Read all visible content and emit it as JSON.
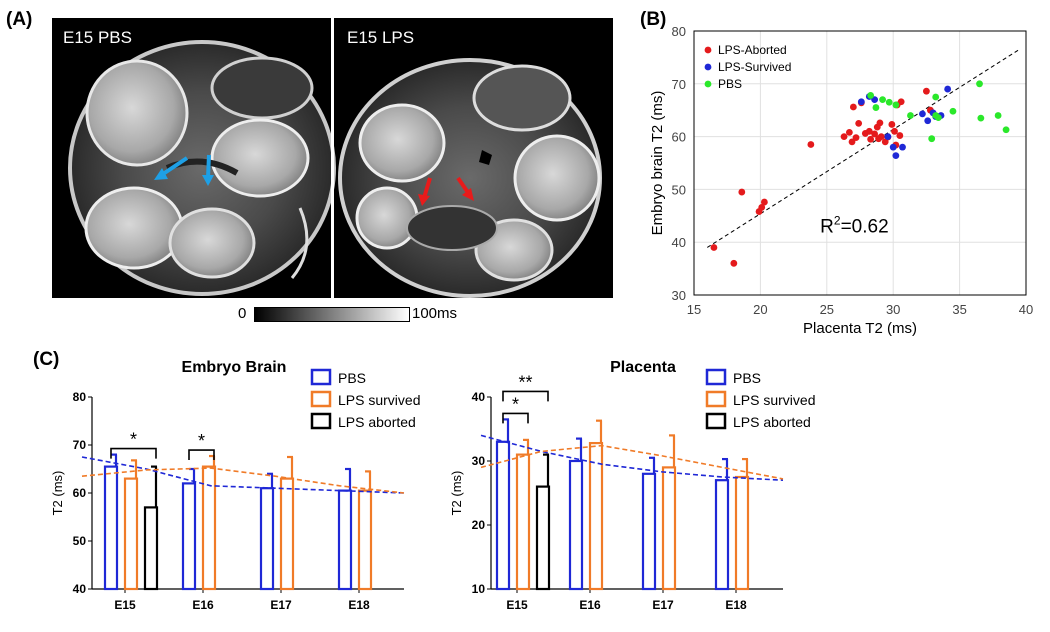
{
  "panels": {
    "a": "(A)",
    "b": "(B)",
    "c": "(C)"
  },
  "mri": {
    "left_label": "E15 PBS",
    "right_label": "E15 LPS",
    "scale_min": "0",
    "scale_max": "100ms",
    "colors": {
      "pbs_arrow": "#1ea0e6",
      "lps_arrow": "#e81b1b"
    }
  },
  "chart_data": [
    {
      "type": "scatter",
      "panel": "(B)",
      "xlabel": "Placenta T2 (ms)",
      "ylabel": "Embryo brain T2 (ms)",
      "xlim": [
        15,
        40
      ],
      "ylim": [
        30,
        80
      ],
      "xticks": [
        15,
        20,
        25,
        30,
        35,
        40
      ],
      "yticks": [
        30,
        40,
        50,
        60,
        70,
        80
      ],
      "grid": true,
      "legend_position": "top-left",
      "annotation": {
        "prefix": "R",
        "sup": "2",
        "suffix": "=0.62"
      },
      "fit_line": {
        "x": [
          16,
          39.5
        ],
        "y": [
          39,
          76.5
        ]
      },
      "series": [
        {
          "name": "LPS-Aborted",
          "color": "#e41a1c",
          "points": [
            [
              16.5,
              39
            ],
            [
              18,
              36
            ],
            [
              18.6,
              49.5
            ],
            [
              19.9,
              45.8
            ],
            [
              20.1,
              46.6
            ],
            [
              20.3,
              47.6
            ],
            [
              23.8,
              58.5
            ],
            [
              26.3,
              60
            ],
            [
              26.7,
              60.8
            ],
            [
              26.9,
              59
            ],
            [
              27.2,
              59.8
            ],
            [
              27.0,
              65.6
            ],
            [
              27.6,
              66.4
            ],
            [
              27.4,
              62.5
            ],
            [
              27.9,
              60.6
            ],
            [
              28.2,
              61
            ],
            [
              28.3,
              59.5
            ],
            [
              28.6,
              60.5
            ],
            [
              28.8,
              61.8
            ],
            [
              29,
              62.6
            ],
            [
              29.1,
              60
            ],
            [
              29.4,
              59
            ],
            [
              29.6,
              59.9
            ],
            [
              29.9,
              62.3
            ],
            [
              30.1,
              61
            ],
            [
              30.2,
              58.4
            ],
            [
              30.3,
              66
            ],
            [
              30.6,
              66.6
            ],
            [
              32.5,
              68.6
            ],
            [
              32.8,
              65
            ],
            [
              30.5,
              60.2
            ],
            [
              28.9,
              59.6
            ]
          ]
        },
        {
          "name": "LPS-Survived",
          "color": "#1f28d6",
          "points": [
            [
              27.6,
              66.6
            ],
            [
              28.2,
              67.6
            ],
            [
              28.6,
              67
            ],
            [
              29.6,
              60
            ],
            [
              30,
              58
            ],
            [
              30.2,
              56.4
            ],
            [
              30.7,
              58
            ],
            [
              32.2,
              64.3
            ],
            [
              32.6,
              63
            ],
            [
              33,
              64.5
            ],
            [
              33.6,
              64
            ],
            [
              33.2,
              63.8
            ],
            [
              34.1,
              69
            ]
          ]
        },
        {
          "name": "PBS",
          "color": "#2ae82a",
          "points": [
            [
              28.3,
              67.8
            ],
            [
              28.7,
              65.5
            ],
            [
              29.2,
              67
            ],
            [
              29.7,
              66.5
            ],
            [
              30.2,
              66
            ],
            [
              31.3,
              64
            ],
            [
              32.9,
              59.6
            ],
            [
              33.2,
              64
            ],
            [
              33.4,
              63.6
            ],
            [
              33.2,
              67.5
            ],
            [
              34.5,
              64.8
            ],
            [
              36.5,
              70
            ],
            [
              36.6,
              63.5
            ],
            [
              37.9,
              64
            ],
            [
              38.5,
              61.3
            ]
          ]
        }
      ]
    },
    {
      "type": "bar",
      "panel": "(C)",
      "title": "Embryo  Brain",
      "ylabel": "T2 (ms)",
      "categories": [
        "E15",
        "E16",
        "E17",
        "E18"
      ],
      "ylim": [
        40,
        80
      ],
      "yticks": [
        40,
        50,
        60,
        70,
        80
      ],
      "legend_position": "top-right",
      "series": [
        {
          "name": "PBS",
          "color": "#1f28d6",
          "values": [
            65.5,
            62,
            61,
            60.5
          ],
          "errors": [
            2.5,
            3,
            3,
            4.5
          ]
        },
        {
          "name": "LPS survived",
          "color": "#f07b28",
          "values": [
            63,
            65.5,
            63,
            60.5
          ],
          "errors": [
            3.8,
            2.2,
            4.5,
            4
          ]
        },
        {
          "name": "LPS aborted",
          "color": "#000000",
          "values": [
            57,
            null,
            null,
            null
          ],
          "errors": [
            8.5,
            null,
            null,
            null
          ]
        }
      ],
      "trend_lines": [
        {
          "series": "PBS",
          "color": "#1f28d6",
          "values": [
            67.5,
            65,
            61.5,
            61,
            60.5,
            60
          ]
        },
        {
          "series": "LPS survived",
          "color": "#f07b28",
          "values": [
            63.5,
            64.8,
            65.2,
            63.5,
            61.5,
            60
          ]
        }
      ],
      "significance": [
        {
          "label": "*",
          "category": "E15",
          "pair": [
            "PBS",
            "LPS aborted"
          ]
        },
        {
          "label": "*",
          "category": "E16",
          "pair": [
            "PBS",
            "LPS survived"
          ]
        }
      ]
    },
    {
      "type": "bar",
      "panel": "(C)",
      "title": "Placenta",
      "ylabel": "T2 (ms)",
      "categories": [
        "E15",
        "E16",
        "E17",
        "E18"
      ],
      "ylim": [
        10,
        40
      ],
      "yticks": [
        10,
        20,
        30,
        40
      ],
      "legend_position": "top-right",
      "series": [
        {
          "name": "PBS",
          "color": "#1f28d6",
          "values": [
            33,
            30,
            28,
            27
          ],
          "errors": [
            3.5,
            3.5,
            2.5,
            3.3
          ]
        },
        {
          "name": "LPS survived",
          "color": "#f07b28",
          "values": [
            31,
            32.8,
            29,
            27.5
          ],
          "errors": [
            2.3,
            3.5,
            5,
            2.8
          ]
        },
        {
          "name": "LPS aborted",
          "color": "#000000",
          "values": [
            26,
            null,
            null,
            null
          ],
          "errors": [
            5,
            null,
            null,
            null
          ]
        }
      ],
      "trend_lines": [
        {
          "series": "PBS",
          "color": "#1f28d6",
          "values": [
            34,
            31.5,
            29.5,
            28.3,
            27.5,
            27
          ]
        },
        {
          "series": "LPS survived",
          "color": "#f07b28",
          "values": [
            29,
            31.5,
            32.4,
            30.8,
            29,
            27.2
          ]
        }
      ],
      "significance": [
        {
          "label": "*",
          "category": "E15",
          "pair": [
            "PBS",
            "LPS survived"
          ]
        },
        {
          "label": "**",
          "category": "E15",
          "pair": [
            "PBS",
            "LPS aborted"
          ]
        }
      ]
    }
  ]
}
